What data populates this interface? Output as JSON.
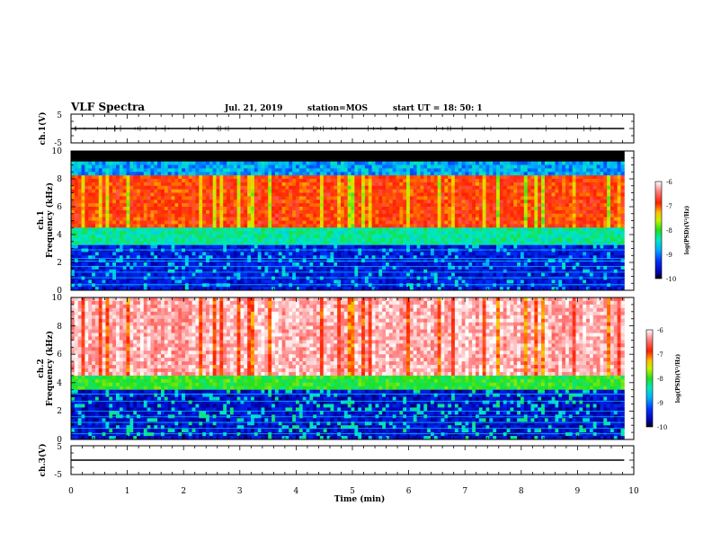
{
  "header": {
    "title": "VLF Spectra",
    "date": "Jul. 21, 2019",
    "station": "station=MOS",
    "start": "start UT =  18: 50: 1"
  },
  "chart_data": [
    {
      "type": "line",
      "panel": "ch1-waveform",
      "ylabel": "ch.1(V)",
      "ylim": [
        -5,
        5
      ],
      "yticks": [
        "5",
        "-5"
      ],
      "series": [
        {
          "x": [
            0,
            9.83
          ],
          "y": [
            0,
            0
          ]
        }
      ]
    },
    {
      "type": "heatmap",
      "panel": "ch1-spectrogram",
      "ylabel": "ch.1\nFrequency (kHz)",
      "ylim": [
        0,
        10
      ],
      "yticks": [
        "0",
        "2",
        "4",
        "6",
        "8",
        "10"
      ],
      "xlim": [
        0,
        10
      ],
      "data_xmax": 9.83,
      "colorbar": {
        "label": "log(PSD)(V²/Hz)",
        "range": [
          -10,
          -6
        ],
        "ticks": [
          "-6",
          "-7",
          "-8",
          "-9",
          "-10"
        ]
      }
    },
    {
      "type": "heatmap",
      "panel": "ch2-spectrogram",
      "ylabel": "ch.2\nFrequency (kHz)",
      "ylim": [
        0,
        10
      ],
      "yticks": [
        "0",
        "2",
        "4",
        "6",
        "8",
        "10"
      ],
      "xlim": [
        0,
        10
      ],
      "data_xmax": 9.83,
      "colorbar": {
        "label": "log(PSD)(V²/Hz)",
        "range": [
          -10,
          -6
        ],
        "ticks": [
          "-6",
          "-7",
          "-8",
          "-9",
          "-10"
        ]
      }
    },
    {
      "type": "line",
      "panel": "ch3-waveform",
      "ylabel": "ch.3(V)",
      "ylim": [
        -5,
        5
      ],
      "yticks": [
        "5",
        "-5"
      ],
      "series": [
        {
          "x": [
            0,
            9.83
          ],
          "y": [
            0,
            0
          ]
        }
      ]
    }
  ],
  "xaxis": {
    "label": "Time (min)",
    "ticks": [
      "0",
      "1",
      "2",
      "3",
      "4",
      "5",
      "6",
      "7",
      "8",
      "9",
      "10"
    ]
  }
}
